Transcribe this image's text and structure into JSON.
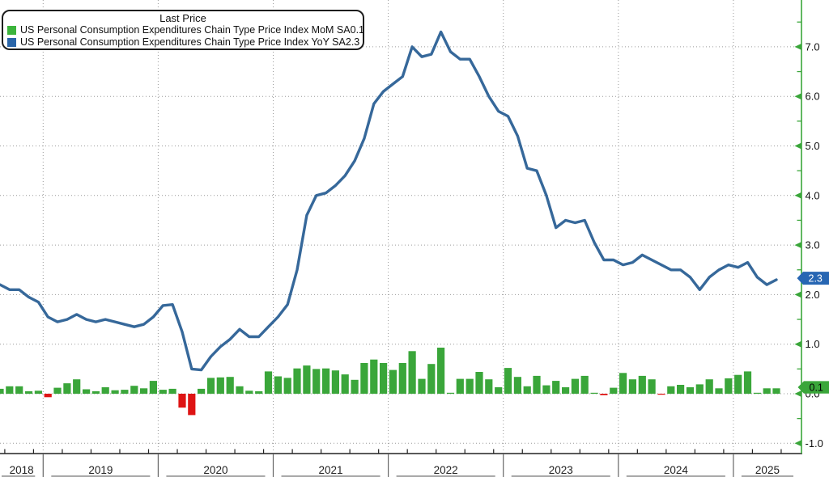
{
  "colors": {
    "bar_positive": "#3aa63a",
    "bar_negative": "#de1414",
    "line": "#36689a",
    "axis_green": "#3aa63a",
    "grid": "#9a9a9a",
    "axis_black": "#222222",
    "badge_mom_bg": "#3aa63a",
    "badge_mom_fg": "#000000",
    "badge_yoy_bg": "#2766b3",
    "badge_yoy_fg": "#ffffff",
    "legend_swatch_mom": "#3cb43c",
    "legend_swatch_yoy": "#2a65a8"
  },
  "legend": {
    "title": "Last Price",
    "entries": [
      {
        "label": "US Personal Consumption Expenditures Chain Type Price Index MoM SA",
        "value": "0.1"
      },
      {
        "label": "US Personal Consumption Expenditures Chain Type Price Index YoY SA",
        "value": "2.3"
      }
    ]
  },
  "chart_data": {
    "type": "bar+line",
    "title": "Last Price",
    "frequency": "monthly",
    "x_start_month": "2018-08",
    "x_end_month": "2025-05",
    "xlabel": "",
    "ylabel": "",
    "year_labels": [
      "2018",
      "2019",
      "2020",
      "2021",
      "2022",
      "2023",
      "2024",
      "2025"
    ],
    "y_axis": {
      "side": "right",
      "min": -1.0,
      "max": 7.5,
      "major_tick_step": 1.0,
      "minor_tick_step": 0.5,
      "tick_labels": [
        "7.0",
        "6.0",
        "5.0",
        "4.0",
        "3.0",
        "2.0",
        "1.0",
        "0.0",
        "-1.0"
      ],
      "grid": true
    },
    "series": [
      {
        "name": "US Personal Consumption Expenditures Chain Type Price Index MoM SA",
        "type": "bar",
        "last_value": 0.1,
        "values": [
          0.1,
          0.15,
          0.15,
          0.05,
          0.06,
          -0.07,
          0.12,
          0.21,
          0.29,
          0.09,
          0.05,
          0.13,
          0.07,
          0.08,
          0.16,
          0.11,
          0.26,
          0.08,
          0.1,
          -0.28,
          -0.43,
          0.1,
          0.32,
          0.33,
          0.34,
          0.15,
          0.06,
          0.05,
          0.45,
          0.35,
          0.32,
          0.51,
          0.57,
          0.5,
          0.51,
          0.47,
          0.39,
          0.28,
          0.62,
          0.69,
          0.62,
          0.48,
          0.62,
          0.86,
          0.3,
          0.6,
          0.93,
          0.02,
          0.3,
          0.3,
          0.44,
          0.29,
          0.13,
          0.52,
          0.34,
          0.15,
          0.36,
          0.17,
          0.26,
          0.13,
          0.3,
          0.36,
          0.02,
          -0.03,
          0.12,
          0.42,
          0.29,
          0.36,
          0.29,
          -0.02,
          0.15,
          0.18,
          0.13,
          0.19,
          0.29,
          0.11,
          0.31,
          0.38,
          0.45,
          0.02,
          0.11,
          0.11
        ]
      },
      {
        "name": "US Personal Consumption Expenditures Chain Type Price Index YoY SA",
        "type": "line",
        "last_value": 2.3,
        "values": [
          2.2,
          2.1,
          2.1,
          1.95,
          1.85,
          1.55,
          1.45,
          1.5,
          1.6,
          1.5,
          1.45,
          1.5,
          1.45,
          1.4,
          1.35,
          1.4,
          1.55,
          1.78,
          1.8,
          1.25,
          0.5,
          0.48,
          0.75,
          0.95,
          1.1,
          1.3,
          1.15,
          1.15,
          1.35,
          1.55,
          1.8,
          2.5,
          3.6,
          4.0,
          4.05,
          4.2,
          4.4,
          4.7,
          5.15,
          5.85,
          6.1,
          6.25,
          6.4,
          7.0,
          6.8,
          6.85,
          7.3,
          6.9,
          6.75,
          6.75,
          6.4,
          6.0,
          5.7,
          5.6,
          5.2,
          4.55,
          4.5,
          4.0,
          3.35,
          3.5,
          3.45,
          3.5,
          3.05,
          2.7,
          2.7,
          2.6,
          2.65,
          2.8,
          2.7,
          2.6,
          2.5,
          2.5,
          2.35,
          2.1,
          2.35,
          2.5,
          2.6,
          2.55,
          2.65,
          2.35,
          2.2,
          2.3
        ]
      }
    ],
    "badges": [
      {
        "text": "0.1",
        "at_value": 0.13,
        "series": "MoM"
      },
      {
        "text": "2.3",
        "at_value": 2.33,
        "series": "YoY"
      }
    ]
  }
}
